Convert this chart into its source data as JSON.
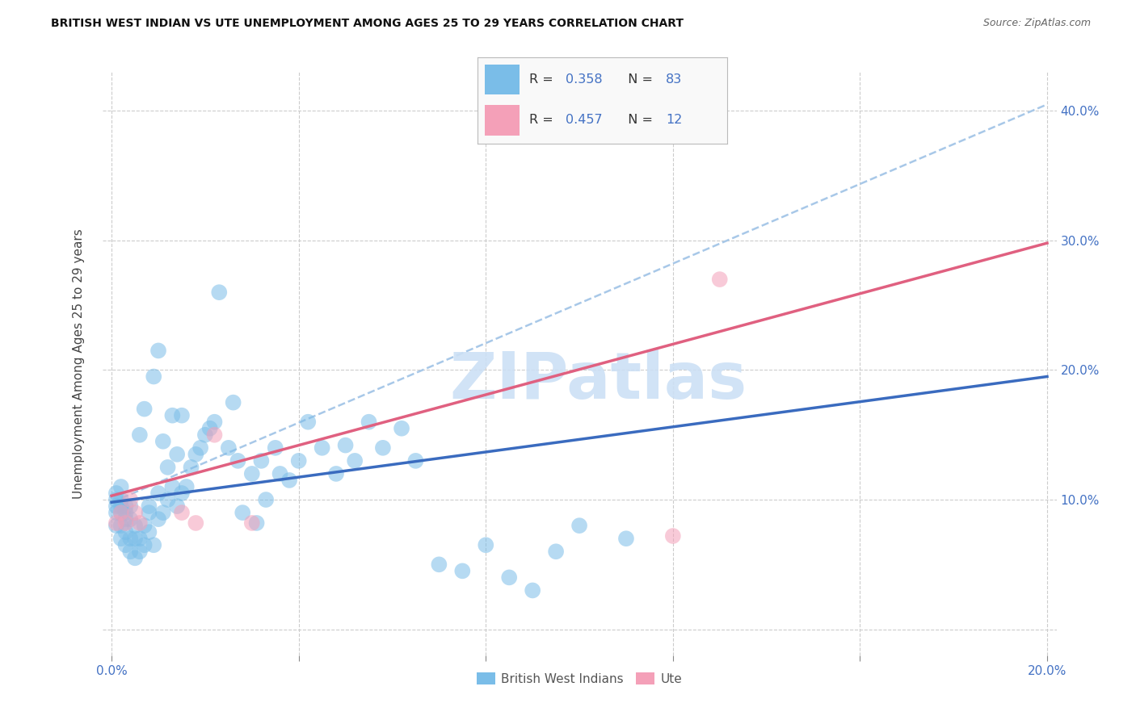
{
  "title": "BRITISH WEST INDIAN VS UTE UNEMPLOYMENT AMONG AGES 25 TO 29 YEARS CORRELATION CHART",
  "source": "Source: ZipAtlas.com",
  "ylabel": "Unemployment Among Ages 25 to 29 years",
  "xlim": [
    -0.002,
    0.202
  ],
  "ylim": [
    -0.02,
    0.43
  ],
  "xticks": [
    0.0,
    0.04,
    0.08,
    0.12,
    0.16,
    0.2
  ],
  "yticks": [
    0.0,
    0.1,
    0.2,
    0.3,
    0.4
  ],
  "xticklabels": [
    "0.0%",
    "",
    "",
    "",
    "",
    "20.0%"
  ],
  "yticklabels": [
    "",
    "10.0%",
    "20.0%",
    "30.0%",
    "40.0%"
  ],
  "color_blue": "#7abde8",
  "color_pink": "#f4a0b8",
  "color_blue_line": "#3a6bbf",
  "color_pink_line": "#e06080",
  "color_dashed_line": "#a8c8e8",
  "color_blue_text": "#4472c4",
  "watermark_color": "#cce0f5",
  "grid_color": "#cccccc",
  "background_color": "#ffffff",
  "bwi_trendline": [
    0.0,
    0.2,
    0.098,
    0.195
  ],
  "ute_trendline": [
    0.0,
    0.2,
    0.103,
    0.298
  ],
  "bwi_dashed": [
    0.0,
    0.2,
    0.098,
    0.405
  ],
  "bwi_x": [
    0.001,
    0.001,
    0.001,
    0.001,
    0.001,
    0.002,
    0.002,
    0.002,
    0.002,
    0.002,
    0.002,
    0.003,
    0.003,
    0.003,
    0.003,
    0.003,
    0.004,
    0.004,
    0.004,
    0.004,
    0.005,
    0.005,
    0.005,
    0.006,
    0.006,
    0.006,
    0.007,
    0.007,
    0.007,
    0.008,
    0.008,
    0.008,
    0.009,
    0.009,
    0.01,
    0.01,
    0.01,
    0.011,
    0.011,
    0.012,
    0.012,
    0.013,
    0.013,
    0.014,
    0.014,
    0.015,
    0.015,
    0.016,
    0.017,
    0.018,
    0.019,
    0.02,
    0.021,
    0.022,
    0.023,
    0.025,
    0.026,
    0.027,
    0.028,
    0.03,
    0.031,
    0.032,
    0.033,
    0.035,
    0.036,
    0.038,
    0.04,
    0.042,
    0.045,
    0.048,
    0.05,
    0.052,
    0.055,
    0.058,
    0.062,
    0.065,
    0.07,
    0.075,
    0.08,
    0.085,
    0.09,
    0.095,
    0.1,
    0.11
  ],
  "bwi_y": [
    0.08,
    0.09,
    0.095,
    0.1,
    0.105,
    0.07,
    0.08,
    0.09,
    0.095,
    0.1,
    0.11,
    0.065,
    0.075,
    0.085,
    0.09,
    0.095,
    0.06,
    0.07,
    0.085,
    0.095,
    0.055,
    0.07,
    0.08,
    0.06,
    0.07,
    0.15,
    0.065,
    0.08,
    0.17,
    0.075,
    0.09,
    0.095,
    0.065,
    0.195,
    0.085,
    0.105,
    0.215,
    0.09,
    0.145,
    0.1,
    0.125,
    0.11,
    0.165,
    0.095,
    0.135,
    0.105,
    0.165,
    0.11,
    0.125,
    0.135,
    0.14,
    0.15,
    0.155,
    0.16,
    0.26,
    0.14,
    0.175,
    0.13,
    0.09,
    0.12,
    0.082,
    0.13,
    0.1,
    0.14,
    0.12,
    0.115,
    0.13,
    0.16,
    0.14,
    0.12,
    0.142,
    0.13,
    0.16,
    0.14,
    0.155,
    0.13,
    0.05,
    0.045,
    0.065,
    0.04,
    0.03,
    0.06,
    0.08,
    0.07
  ],
  "ute_x": [
    0.001,
    0.002,
    0.003,
    0.004,
    0.005,
    0.006,
    0.015,
    0.018,
    0.022,
    0.03,
    0.12,
    0.13
  ],
  "ute_y": [
    0.082,
    0.09,
    0.082,
    0.1,
    0.09,
    0.082,
    0.09,
    0.082,
    0.15,
    0.082,
    0.072,
    0.27
  ]
}
